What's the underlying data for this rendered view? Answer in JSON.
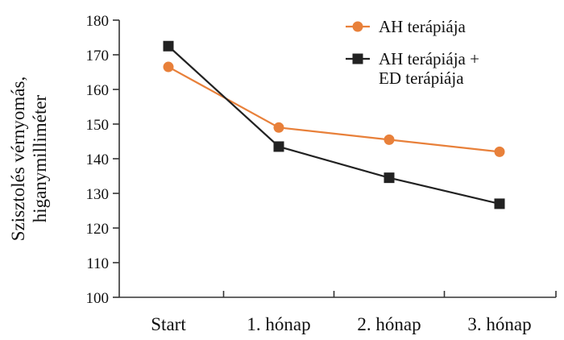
{
  "chart_data": {
    "type": "line",
    "title": "",
    "xlabel": "",
    "ylabel_lines": [
      "Szisztolés vérnyomás,",
      "higanymilliméter"
    ],
    "categories": [
      "Start",
      "1. hónap",
      "2. hónap",
      "3. hónap"
    ],
    "ylim": [
      100,
      180
    ],
    "yticks": [
      100,
      110,
      120,
      130,
      140,
      150,
      160,
      170,
      180
    ],
    "grid": false,
    "legend_position": "top-right",
    "series": [
      {
        "name": "AH terápiája",
        "name_lines": [
          "AH terápiája"
        ],
        "marker": "circle",
        "color": "#E8803A",
        "values": [
          166.5,
          149,
          145.5,
          142
        ]
      },
      {
        "name": "AH terápiája + ED terápiája",
        "name_lines": [
          "AH terápiája +",
          "ED terápiája"
        ],
        "marker": "square",
        "color": "#222222",
        "values": [
          172.5,
          143.5,
          134.5,
          127
        ]
      }
    ]
  }
}
